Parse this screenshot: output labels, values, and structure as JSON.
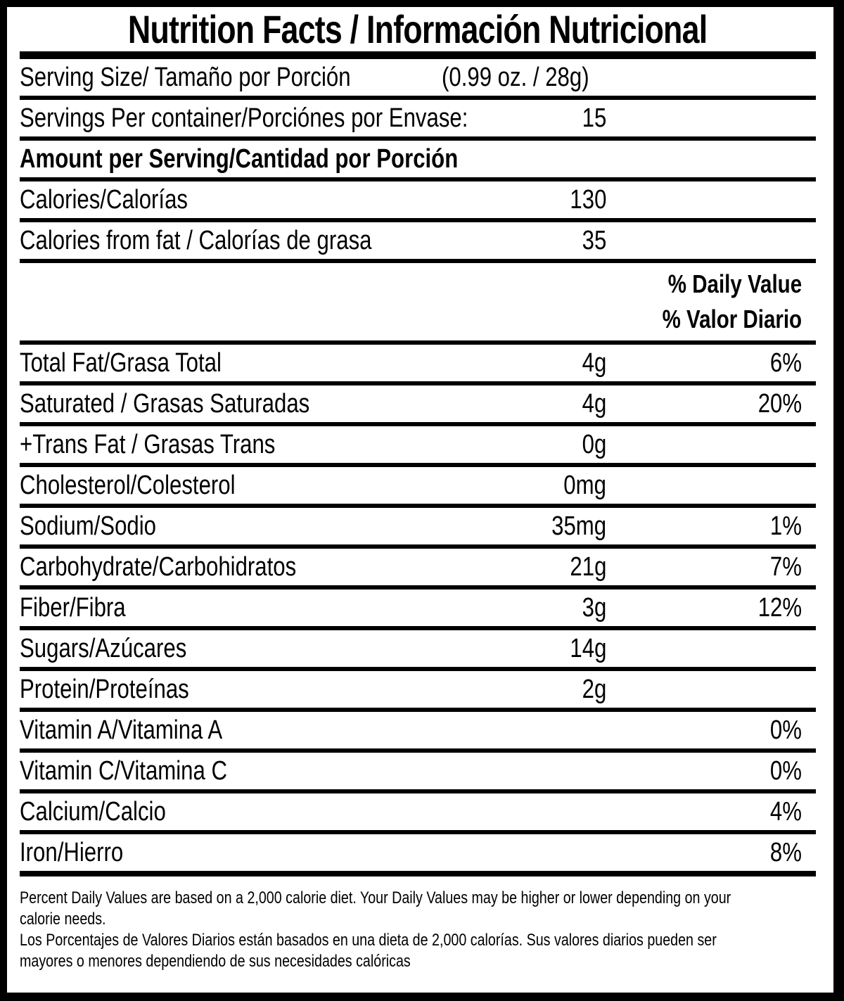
{
  "colors": {
    "text": "#000000",
    "background": "#ffffff"
  },
  "title": "Nutrition Facts / Información Nutricional",
  "serving": {
    "size_label": "Serving Size/ Tamaño por Porción",
    "size_value": "(0.99 oz. / 28g)",
    "per_container_label": "Servings Per container/Porciónes por Envase:",
    "per_container_value": "15"
  },
  "amount_per_serving_header": "Amount per Serving/Cantidad por Porción",
  "daily_value_header": {
    "en": "% Daily Value",
    "es": "% Valor Diario"
  },
  "rows": [
    {
      "label": "Calories/Calorías",
      "amount": "130"
    },
    {
      "label": "Calories from fat / Calorías de grasa",
      "amount": "35"
    },
    {
      "label": "Total Fat/Grasa Total",
      "amount": "4g",
      "pct": "6%"
    },
    {
      "label": "Saturated / Grasas Saturadas",
      "amount": "4g",
      "pct": "20%"
    },
    {
      "label": "+Trans Fat / Grasas Trans",
      "amount": "0g"
    },
    {
      "label": "Cholesterol/Colesterol",
      "amount": "0mg"
    },
    {
      "label": "Sodium/Sodio",
      "amount": "35mg",
      "pct": "1%"
    },
    {
      "label": "Carbohydrate/Carbohidratos",
      "amount": "21g",
      "pct": "7%"
    },
    {
      "label": "Fiber/Fibra",
      "amount": "3g",
      "pct": "12%"
    },
    {
      "label": "Sugars/Azúcares",
      "amount": "14g"
    },
    {
      "label": "Protein/Proteínas",
      "amount": "2g"
    },
    {
      "label": "Vitamin A/Vitamina A",
      "pct": "0%"
    },
    {
      "label": "Vitamin C/Vitamina C",
      "pct": "0%"
    },
    {
      "label": "Calcium/Calcio",
      "pct": "4%"
    },
    {
      "label": "Iron/Hierro",
      "pct": "8%"
    }
  ],
  "footnote": {
    "en_lines": [
      "Percent Daily Values are based on a 2,000 calorie diet. Your Daily Values may be higher or lower depending on your",
      "calorie needs."
    ],
    "es_lines": [
      "Los Porcentajes de Valores Diarios están basados en una dieta de 2,000 calorías. Sus valores diarios pueden ser",
      "mayores o menores dependiendo de sus necesidades calóricas"
    ]
  }
}
